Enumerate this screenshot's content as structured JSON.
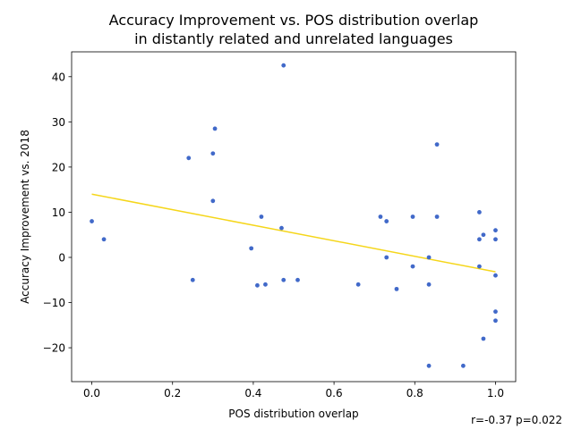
{
  "chart_data": {
    "type": "scatter",
    "title": [
      "Accuracy Improvement vs. POS distribution overlap",
      "in distantly related and unrelated languages"
    ],
    "xlabel": "POS distribution overlap",
    "ylabel": "Accuracy Improvement vs. 2018",
    "xlim": [
      -0.05,
      1.05
    ],
    "ylim": [
      -27.5,
      45.5
    ],
    "xticks": [
      0.0,
      0.2,
      0.4,
      0.6,
      0.8,
      1.0
    ],
    "xtick_labels": [
      "0.0",
      "0.2",
      "0.4",
      "0.6",
      "0.8",
      "1.0"
    ],
    "yticks": [
      -20,
      -10,
      0,
      10,
      20,
      30,
      40
    ],
    "ytick_labels": [
      "−20",
      "−10",
      "0",
      "10",
      "20",
      "30",
      "40"
    ],
    "grid": false,
    "legend": false,
    "point_color": "#4169c9",
    "line_color": "#f5d61a",
    "points": [
      {
        "x": 0.0,
        "y": 8.0
      },
      {
        "x": 0.03,
        "y": 4.0
      },
      {
        "x": 0.24,
        "y": 22.0
      },
      {
        "x": 0.25,
        "y": -5.0
      },
      {
        "x": 0.3,
        "y": 23.0
      },
      {
        "x": 0.3,
        "y": 12.5
      },
      {
        "x": 0.305,
        "y": 28.5
      },
      {
        "x": 0.395,
        "y": 2.0
      },
      {
        "x": 0.41,
        "y": -6.2
      },
      {
        "x": 0.42,
        "y": 9.0
      },
      {
        "x": 0.43,
        "y": -6.0
      },
      {
        "x": 0.47,
        "y": 6.5
      },
      {
        "x": 0.475,
        "y": 42.5
      },
      {
        "x": 0.475,
        "y": -5.0
      },
      {
        "x": 0.51,
        "y": -5.0
      },
      {
        "x": 0.66,
        "y": -6.0
      },
      {
        "x": 0.715,
        "y": 9.0
      },
      {
        "x": 0.73,
        "y": 8.0
      },
      {
        "x": 0.73,
        "y": 0.0
      },
      {
        "x": 0.755,
        "y": -7.0
      },
      {
        "x": 0.795,
        "y": 9.0
      },
      {
        "x": 0.795,
        "y": -2.0
      },
      {
        "x": 0.835,
        "y": 0.0
      },
      {
        "x": 0.835,
        "y": -6.0
      },
      {
        "x": 0.835,
        "y": -24.0
      },
      {
        "x": 0.855,
        "y": 25.0
      },
      {
        "x": 0.855,
        "y": 9.0
      },
      {
        "x": 0.92,
        "y": -24.0
      },
      {
        "x": 0.96,
        "y": 10.0
      },
      {
        "x": 0.96,
        "y": 4.0
      },
      {
        "x": 0.96,
        "y": -2.0
      },
      {
        "x": 0.97,
        "y": 5.0
      },
      {
        "x": 0.97,
        "y": -18.0
      },
      {
        "x": 1.0,
        "y": 6.0
      },
      {
        "x": 1.0,
        "y": 4.0
      },
      {
        "x": 1.0,
        "y": -4.0
      },
      {
        "x": 1.0,
        "y": -12.0
      },
      {
        "x": 1.0,
        "y": -14.0
      }
    ],
    "fit_line": {
      "x": [
        0.0,
        1.0
      ],
      "y": [
        14.0,
        -3.2
      ]
    },
    "annotation": "r=-0.37 p=0.022"
  }
}
